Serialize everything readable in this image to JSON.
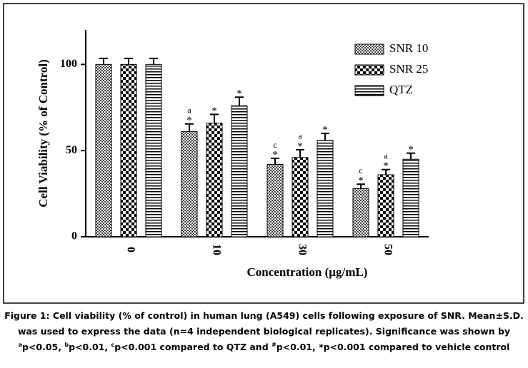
{
  "chart_data": {
    "type": "bar",
    "xlabel": "Concentration (µg/mL)",
    "ylabel": "Cell Viability (% of Control)",
    "categories": [
      "0",
      "10",
      "30",
      "50"
    ],
    "ylim": [
      0,
      120
    ],
    "yticks": [
      0,
      50,
      100
    ],
    "legend": "upper right",
    "series": [
      {
        "name": "SNR 10",
        "color": "#444444",
        "pattern": "fine-checker",
        "values": [
          100,
          61,
          42,
          28
        ],
        "errors": [
          3.5,
          4.5,
          3.5,
          2.5
        ],
        "significance": [
          null,
          [
            "a",
            "*"
          ],
          [
            "c",
            "*"
          ],
          [
            "c",
            "*"
          ]
        ]
      },
      {
        "name": "SNR 25",
        "color": "#000000",
        "pattern": "checker",
        "values": [
          100,
          66,
          46,
          36
        ],
        "errors": [
          3.5,
          5,
          4.5,
          3
        ],
        "significance": [
          null,
          [
            "*"
          ],
          [
            "a",
            "*"
          ],
          [
            "a",
            "*"
          ]
        ]
      },
      {
        "name": "QTZ",
        "color": "#000000",
        "pattern": "horizontal-lines",
        "values": [
          100,
          76,
          56,
          45
        ],
        "errors": [
          3.5,
          5,
          4,
          3.5
        ],
        "significance": [
          null,
          [
            "*"
          ],
          [
            "*"
          ],
          [
            "*"
          ]
        ]
      }
    ],
    "caption": [
      "Figure 1: Cell viability (% of control) in human lung (A549) cells following exposure of SNR. Mean±S.D. was used to express the data (n=4 independent biological replicates). Significance was shown by ",
      "a",
      "p<0.05, ",
      "b",
      "p<0.01, ",
      "c",
      "p<0.001 compared to QTZ and ",
      "#",
      "p<0.01, *p<0.001 compared to vehicle control"
    ]
  }
}
